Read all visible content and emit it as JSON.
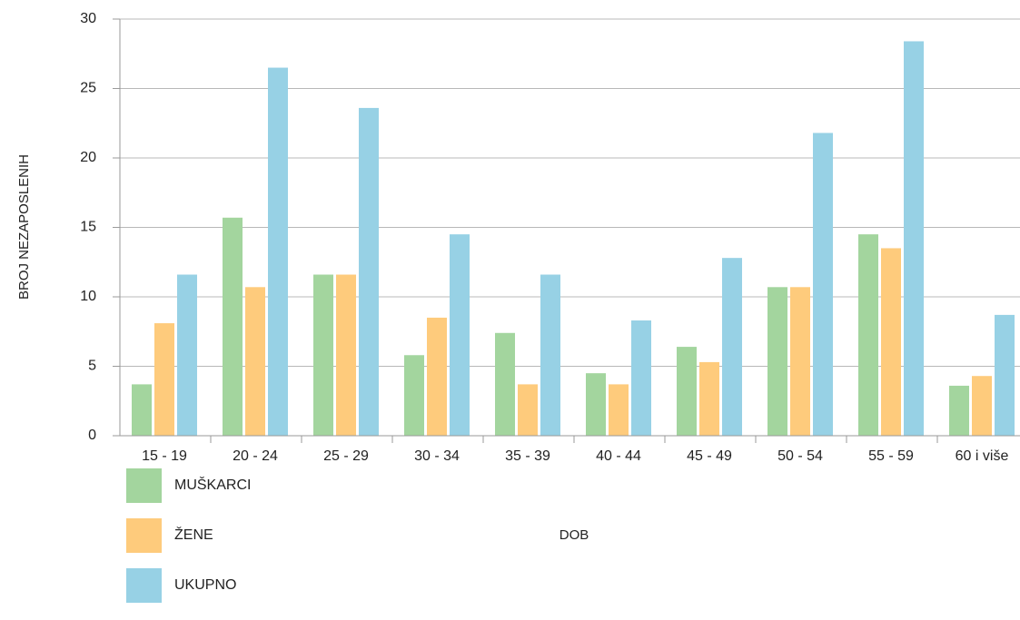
{
  "chart_data": {
    "type": "bar",
    "title": "",
    "xlabel": "DOB",
    "ylabel": "BROJ NEZAPOSLENIH",
    "categories": [
      "15 - 19",
      "20 - 24",
      "25 - 29",
      "30 - 34",
      "35 - 39",
      "40 - 44",
      "45 - 49",
      "50 - 54",
      "55 - 59",
      "60 i više"
    ],
    "ylim": [
      0,
      30
    ],
    "yticks": [
      0,
      5,
      10,
      15,
      20,
      25,
      30
    ],
    "grid": true,
    "legend_position": "bottom-left",
    "series": [
      {
        "name": "MUŠKARCI",
        "color": "#a3d59e",
        "values": [
          3.7,
          15.7,
          11.6,
          5.8,
          7.4,
          4.5,
          6.4,
          10.7,
          14.5,
          3.6
        ]
      },
      {
        "name": "ŽENE",
        "color": "#fecb7c",
        "values": [
          8.1,
          10.7,
          11.6,
          8.5,
          3.7,
          3.7,
          5.3,
          10.7,
          13.5,
          4.3
        ]
      },
      {
        "name": "UKUPNO",
        "color": "#97d1e5",
        "values": [
          11.6,
          26.5,
          23.6,
          14.5,
          11.6,
          8.3,
          12.8,
          21.8,
          28.4,
          8.7
        ]
      }
    ]
  }
}
